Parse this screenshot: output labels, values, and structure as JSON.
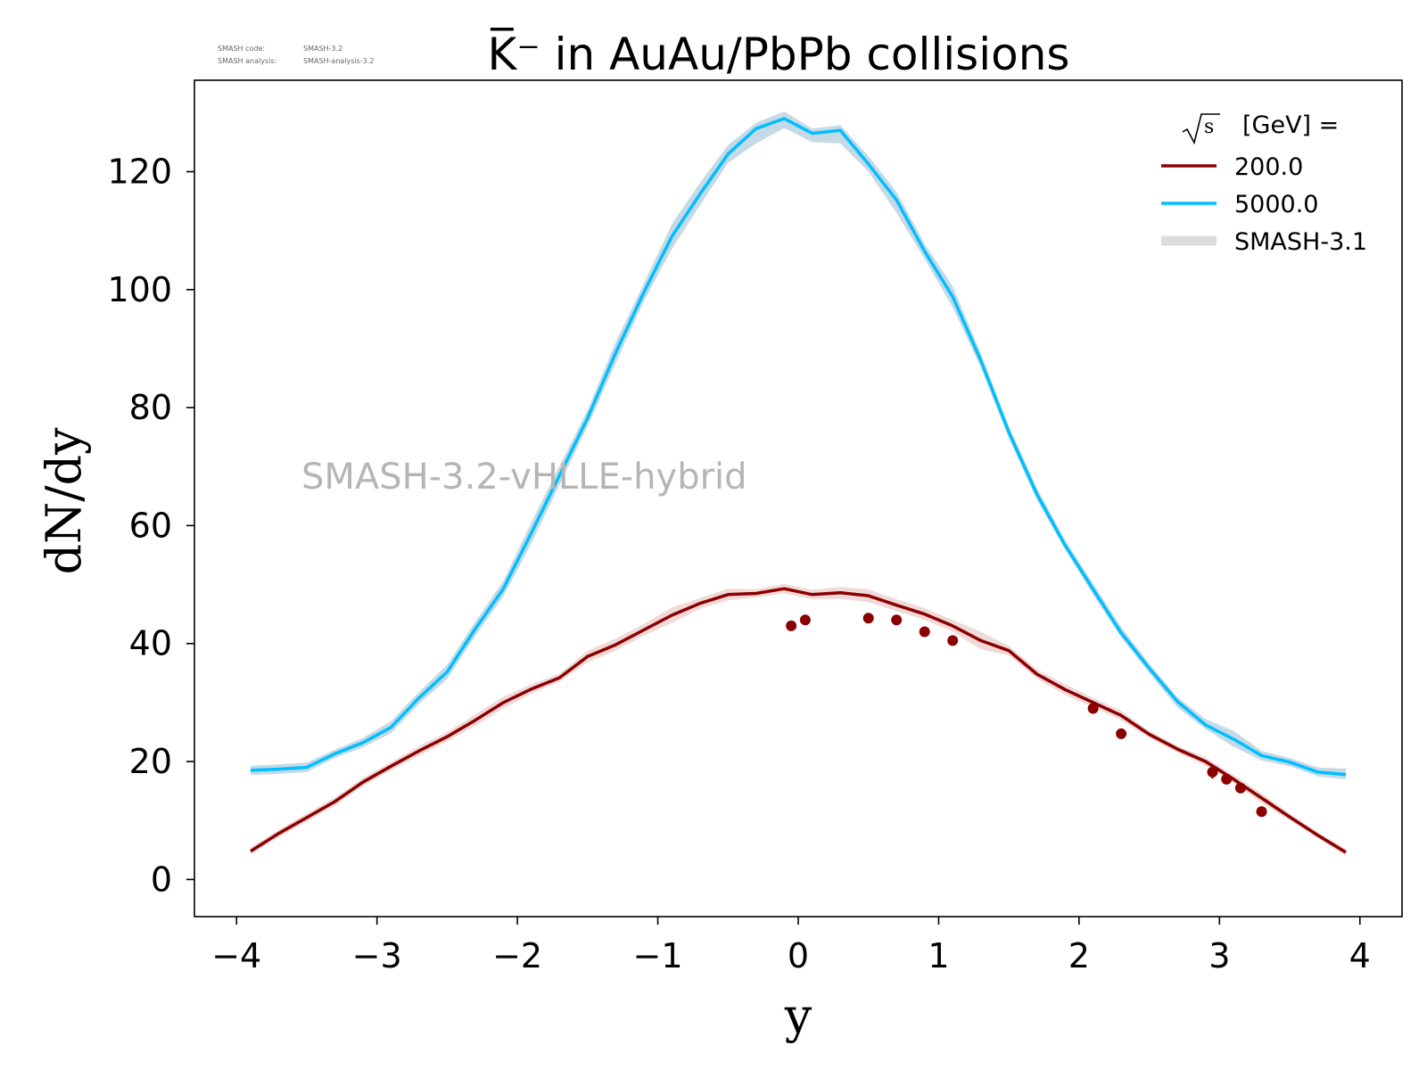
{
  "header": {
    "code_label": "SMASH code:",
    "code_value": "SMASH-3.2",
    "analysis_label": "SMASH analysis:",
    "analysis_value": "SMASH-analysis-3.2"
  },
  "watermark": "SMASH-3.2-vHLLE-hybrid",
  "chart_data": {
    "type": "line",
    "title": "K̅⁻ in AuAu/PbPb collisions",
    "xlabel": "y",
    "ylabel": "dN/dy",
    "xlim": [
      -4.3,
      4.3
    ],
    "ylim": [
      -6.3,
      135.5
    ],
    "xticks": [
      -4,
      -3,
      -2,
      -1,
      0,
      1,
      2,
      3,
      4
    ],
    "xtick_labels": [
      "−4",
      "−3",
      "−2",
      "−1",
      "0",
      "1",
      "2",
      "3",
      "4"
    ],
    "yticks": [
      0,
      20,
      40,
      60,
      80,
      100,
      120
    ],
    "ytick_labels": [
      "0",
      "20",
      "40",
      "60",
      "80",
      "100",
      "120"
    ],
    "grid": false,
    "legend": {
      "placement": "top-right",
      "title_root": "s",
      "title_text": "[GeV] =",
      "entries": [
        "200.0",
        "5000.0",
        "SMASH-3.1"
      ]
    },
    "x": [
      -3.9,
      -3.7,
      -3.5,
      -3.3,
      -3.1,
      -2.9,
      -2.7,
      -2.5,
      -2.3,
      -2.1,
      -1.9,
      -1.7,
      -1.5,
      -1.3,
      -1.1,
      -0.9,
      -0.7,
      -0.5,
      -0.3,
      -0.1,
      0.1,
      0.3,
      0.5,
      0.7,
      0.9,
      1.1,
      1.3,
      1.5,
      1.7,
      1.9,
      2.1,
      2.3,
      2.5,
      2.7,
      2.9,
      3.1,
      3.3,
      3.5,
      3.7,
      3.9
    ],
    "series": [
      {
        "name": "200.0",
        "color": "#8b0000",
        "values": [
          4.8,
          7.8,
          10.5,
          13.2,
          16.5,
          19.2,
          21.8,
          24.2,
          27.0,
          30.0,
          32.3,
          34.2,
          37.8,
          39.8,
          42.3,
          44.8,
          46.8,
          48.3,
          48.5,
          49.3,
          48.3,
          48.6,
          48.1,
          46.5,
          45.0,
          43.0,
          40.5,
          38.8,
          34.8,
          32.2,
          30.0,
          27.8,
          24.6,
          22.1,
          20.0,
          17.0,
          13.8,
          10.6,
          7.5,
          4.6
        ],
        "band_low": [
          4.2,
          7.2,
          9.8,
          12.5,
          15.8,
          18.5,
          21.0,
          23.4,
          26.0,
          29.0,
          31.5,
          33.5,
          36.8,
          38.8,
          41.3,
          43.5,
          45.9,
          47.3,
          47.8,
          48.5,
          47.5,
          47.6,
          47.0,
          45.5,
          44.0,
          42.0,
          39.0,
          38.0,
          34.0,
          31.3,
          29.2,
          27.0,
          24.0,
          21.5,
          19.3,
          16.3,
          13.0,
          10.0,
          7.0,
          4.0
        ],
        "band_high": [
          5.4,
          8.4,
          11.2,
          13.9,
          17.2,
          19.9,
          22.6,
          25.0,
          28.0,
          31.0,
          33.1,
          34.9,
          38.8,
          40.8,
          43.3,
          46.1,
          47.7,
          49.3,
          49.2,
          50.1,
          49.1,
          49.6,
          49.2,
          47.5,
          46.0,
          44.0,
          42.0,
          39.6,
          35.6,
          33.1,
          30.8,
          28.6,
          25.2,
          22.7,
          20.7,
          17.7,
          14.6,
          11.2,
          8.0,
          5.2
        ]
      },
      {
        "name": "5000.0",
        "color": "#00bfff",
        "values": [
          18.5,
          18.7,
          19.0,
          21.3,
          23.2,
          25.8,
          30.8,
          35.2,
          42.5,
          49.3,
          58.8,
          68.5,
          78.2,
          89.3,
          99.5,
          109.0,
          116.2,
          123.0,
          127.3,
          129.0,
          126.5,
          127.0,
          121.3,
          115.2,
          106.5,
          98.8,
          88.0,
          75.8,
          65.3,
          56.7,
          49.2,
          41.8,
          35.8,
          30.2,
          26.2,
          23.8,
          21.0,
          19.9,
          18.2,
          17.8
        ],
        "band_low": [
          17.7,
          17.9,
          18.2,
          20.6,
          22.4,
          24.8,
          29.8,
          34.0,
          41.3,
          48.0,
          57.0,
          66.9,
          76.8,
          87.5,
          98.0,
          106.9,
          114.3,
          121.5,
          124.8,
          127.4,
          125.0,
          124.8,
          120.0,
          113.0,
          105.2,
          97.0,
          86.8,
          74.8,
          64.3,
          56.0,
          48.3,
          41.0,
          35.0,
          29.2,
          25.5,
          22.5,
          20.2,
          19.2,
          17.5,
          17.0
        ],
        "band_high": [
          19.3,
          19.5,
          19.8,
          22.0,
          24.0,
          26.8,
          31.8,
          36.4,
          43.7,
          50.6,
          60.6,
          70.1,
          79.6,
          91.1,
          101.0,
          111.1,
          118.1,
          124.5,
          128.3,
          130.2,
          127.3,
          127.9,
          122.6,
          116.6,
          107.8,
          100.6,
          89.2,
          76.8,
          66.3,
          57.6,
          50.2,
          42.8,
          36.6,
          30.9,
          27.2,
          25.2,
          21.8,
          20.6,
          19.0,
          18.8
        ]
      }
    ],
    "points": {
      "series": "200.0",
      "color": "#8b0000",
      "x": [
        -0.05,
        0.05,
        0.5,
        0.7,
        0.9,
        1.1,
        2.1,
        2.3,
        2.95,
        3.05,
        3.15,
        3.3
      ],
      "y": [
        43.0,
        44.0,
        44.3,
        44.0,
        42.0,
        40.5,
        29.0,
        24.7,
        18.2,
        17.0,
        15.5,
        11.5
      ],
      "err": [
        0.7,
        0.7,
        0.6,
        0.6,
        0.6,
        0.6,
        0.9,
        0.9,
        1.1,
        0.8,
        0.8,
        0.6
      ]
    },
    "band_color": "#c8c8c8"
  }
}
